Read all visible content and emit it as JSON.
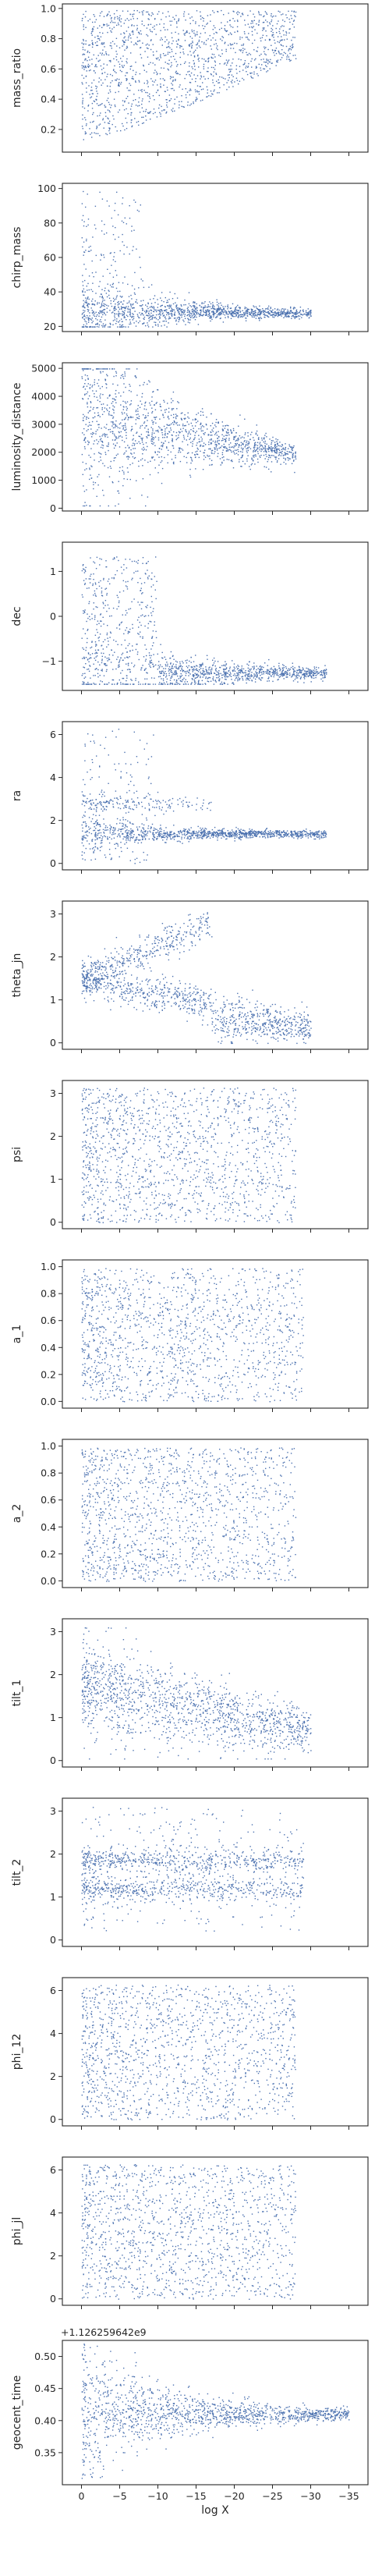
{
  "figure": {
    "xlabel": "log X",
    "x_tick_labels": [
      "0",
      "−5",
      "−10",
      "−15",
      "−20",
      "−25",
      "−30",
      "−35"
    ],
    "point_color": "#4c72b0",
    "axes_color": "#262626"
  },
  "chart_data": [
    {
      "type": "scatter",
      "ylabel": "mass_ratio",
      "xlim": [
        2.5,
        -37.5
      ],
      "ylim": [
        0.05,
        1.03
      ],
      "yticks": [
        0.2,
        0.4,
        0.6,
        0.8,
        1.0
      ],
      "ytick_labels": [
        "0.2",
        "0.4",
        "0.6",
        "0.8",
        "1.0"
      ],
      "x_extent": [
        0,
        -28
      ],
      "y_band": [
        0.12,
        0.99
      ]
    },
    {
      "type": "scatter",
      "ylabel": "chirp_mass",
      "xlim": [
        2.5,
        -37.5
      ],
      "ylim": [
        17,
        103
      ],
      "yticks": [
        20,
        40,
        60,
        80,
        100
      ],
      "ytick_labels": [
        "20",
        "40",
        "60",
        "80",
        "100"
      ],
      "x_extent": [
        0,
        -30
      ],
      "y_converge": 28
    },
    {
      "type": "scatter",
      "ylabel": "luminosity_distance",
      "xlim": [
        2.5,
        -37.5
      ],
      "ylim": [
        -100,
        5200
      ],
      "yticks": [
        0,
        1000,
        2000,
        3000,
        4000,
        5000
      ],
      "ytick_labels": [
        "0",
        "1000",
        "2000",
        "3000",
        "4000",
        "5000"
      ],
      "x_extent": [
        0,
        -28
      ],
      "y_converge": 1950
    },
    {
      "type": "scatter",
      "ylabel": "dec",
      "xlim": [
        2.5,
        -37.5
      ],
      "ylim": [
        -1.65,
        1.65
      ],
      "yticks": [
        -1,
        0,
        1
      ],
      "ytick_labels": [
        "−1",
        "0",
        "1"
      ],
      "x_extent": [
        0,
        -32
      ],
      "y_converge": -1.25
    },
    {
      "type": "scatter",
      "ylabel": "ra",
      "xlim": [
        2.5,
        -37.5
      ],
      "ylim": [
        -0.3,
        6.6
      ],
      "yticks": [
        0,
        2,
        4,
        6
      ],
      "ytick_labels": [
        "0",
        "2",
        "4",
        "6"
      ],
      "x_extent": [
        0,
        -32
      ],
      "y_converge": 1.4
    },
    {
      "type": "scatter",
      "ylabel": "theta_jn",
      "xlim": [
        2.5,
        -37.5
      ],
      "ylim": [
        -0.15,
        3.3
      ],
      "yticks": [
        0,
        1,
        2,
        3
      ],
      "ytick_labels": [
        "0",
        "1",
        "2",
        "3"
      ],
      "x_extent": [
        0,
        -30
      ],
      "y_converge": 0.35
    },
    {
      "type": "scatter",
      "ylabel": "psi",
      "xlim": [
        2.5,
        -37.5
      ],
      "ylim": [
        -0.15,
        3.3
      ],
      "yticks": [
        0,
        1,
        2,
        3
      ],
      "ytick_labels": [
        "0",
        "1",
        "2",
        "3"
      ],
      "x_extent": [
        0,
        -28
      ],
      "y_band": [
        0,
        3.14
      ]
    },
    {
      "type": "scatter",
      "ylabel": "a_1",
      "xlim": [
        2.5,
        -37.5
      ],
      "ylim": [
        -0.05,
        1.05
      ],
      "yticks": [
        0,
        0.2,
        0.4,
        0.6,
        0.8,
        1.0
      ],
      "ytick_labels": [
        "0.0",
        "0.2",
        "0.4",
        "0.6",
        "0.8",
        "1.0"
      ],
      "x_extent": [
        0,
        -29
      ],
      "y_band": [
        0,
        0.99
      ]
    },
    {
      "type": "scatter",
      "ylabel": "a_2",
      "xlim": [
        2.5,
        -37.5
      ],
      "ylim": [
        -0.05,
        1.05
      ],
      "yticks": [
        0,
        0.2,
        0.4,
        0.6,
        0.8,
        1.0
      ],
      "ytick_labels": [
        "0.0",
        "0.2",
        "0.4",
        "0.6",
        "0.8",
        "1.0"
      ],
      "x_extent": [
        0,
        -28
      ],
      "y_band": [
        0,
        0.99
      ]
    },
    {
      "type": "scatter",
      "ylabel": "tilt_1",
      "xlim": [
        2.5,
        -37.5
      ],
      "ylim": [
        -0.15,
        3.3
      ],
      "yticks": [
        0,
        1,
        2,
        3
      ],
      "ytick_labels": [
        "0",
        "1",
        "2",
        "3"
      ],
      "x_extent": [
        0,
        -30
      ],
      "y_converge": 0.7
    },
    {
      "type": "scatter",
      "ylabel": "tilt_2",
      "xlim": [
        2.5,
        -37.5
      ],
      "ylim": [
        -0.15,
        3.3
      ],
      "yticks": [
        0,
        1,
        2,
        3
      ],
      "ytick_labels": [
        "0",
        "1",
        "2",
        "3"
      ],
      "x_extent": [
        0,
        -29
      ],
      "y_band": [
        0.2,
        3.1
      ]
    },
    {
      "type": "scatter",
      "ylabel": "phi_12",
      "xlim": [
        2.5,
        -37.5
      ],
      "ylim": [
        -0.3,
        6.6
      ],
      "yticks": [
        0,
        2,
        4,
        6
      ],
      "ytick_labels": [
        "0",
        "2",
        "4",
        "6"
      ],
      "x_extent": [
        0,
        -28
      ],
      "y_band": [
        0,
        6.28
      ]
    },
    {
      "type": "scatter",
      "ylabel": "phi_jl",
      "xlim": [
        2.5,
        -37.5
      ],
      "ylim": [
        -0.3,
        6.6
      ],
      "yticks": [
        0,
        2,
        4,
        6
      ],
      "ytick_labels": [
        "0",
        "2",
        "4",
        "6"
      ],
      "x_extent": [
        0,
        -28
      ],
      "y_band": [
        0,
        6.28
      ]
    },
    {
      "type": "scatter",
      "ylabel": "geocent_time",
      "offset_text": "+1.126259642e9",
      "xlim": [
        2.5,
        -37.5
      ],
      "ylim": [
        0.3,
        0.525
      ],
      "yticks": [
        0.35,
        0.4,
        0.45,
        0.5
      ],
      "ytick_labels": [
        "0.35",
        "0.40",
        "0.45",
        "0.50"
      ],
      "x_extent": [
        0,
        -35
      ],
      "y_converge": 0.41
    }
  ]
}
